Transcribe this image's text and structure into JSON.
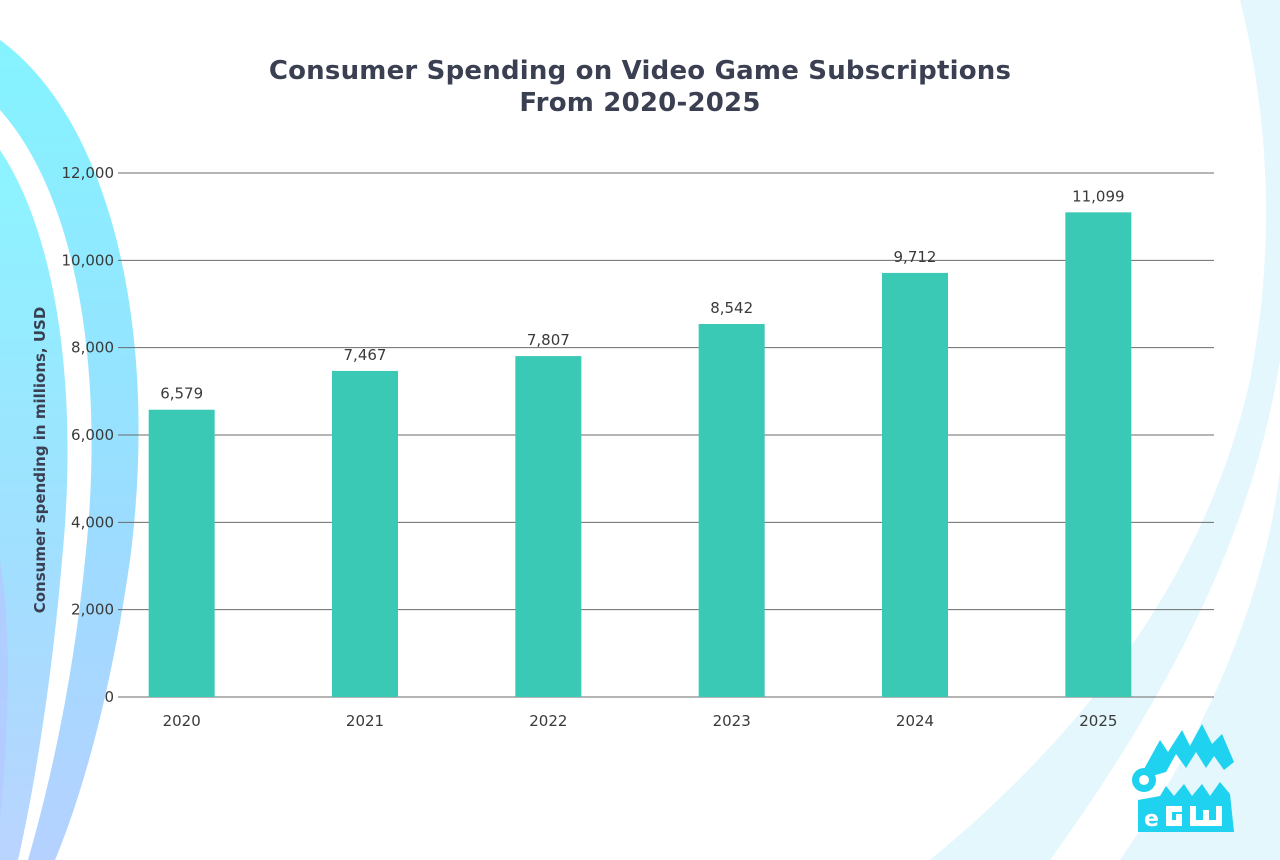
{
  "chart_data": {
    "type": "bar",
    "title_lines": [
      "Consumer Spending on Video Game Subscriptions",
      "From 2020-2025"
    ],
    "ylabel": "Consumer spending in millions, USD",
    "xlabel": "",
    "categories": [
      "2020",
      "2021",
      "2022",
      "2023",
      "2024",
      "2025"
    ],
    "values": [
      6579,
      7467,
      7807,
      8542,
      9712,
      11099
    ],
    "value_labels": [
      "6,579",
      "7,467",
      "7,807",
      "8,542",
      "9,712",
      "11,099"
    ],
    "ylim": [
      0,
      12000
    ],
    "yticks": [
      0,
      2000,
      4000,
      6000,
      8000,
      10000,
      12000
    ],
    "ytick_labels": [
      "0",
      "2,000",
      "4,000",
      "6,000",
      "8,000",
      "10,000",
      "12,000"
    ],
    "grid": true,
    "legend": "none"
  },
  "colors": {
    "bar": "#3ac9b4",
    "grid": "#6b6b6b",
    "title": "#3a3f52",
    "logo": "#1fd2ef",
    "swoosh_left": "#66e6ff",
    "swoosh_right": "#dff6fd"
  },
  "logo": {
    "icon": "egw-crocodile-logo-icon"
  }
}
